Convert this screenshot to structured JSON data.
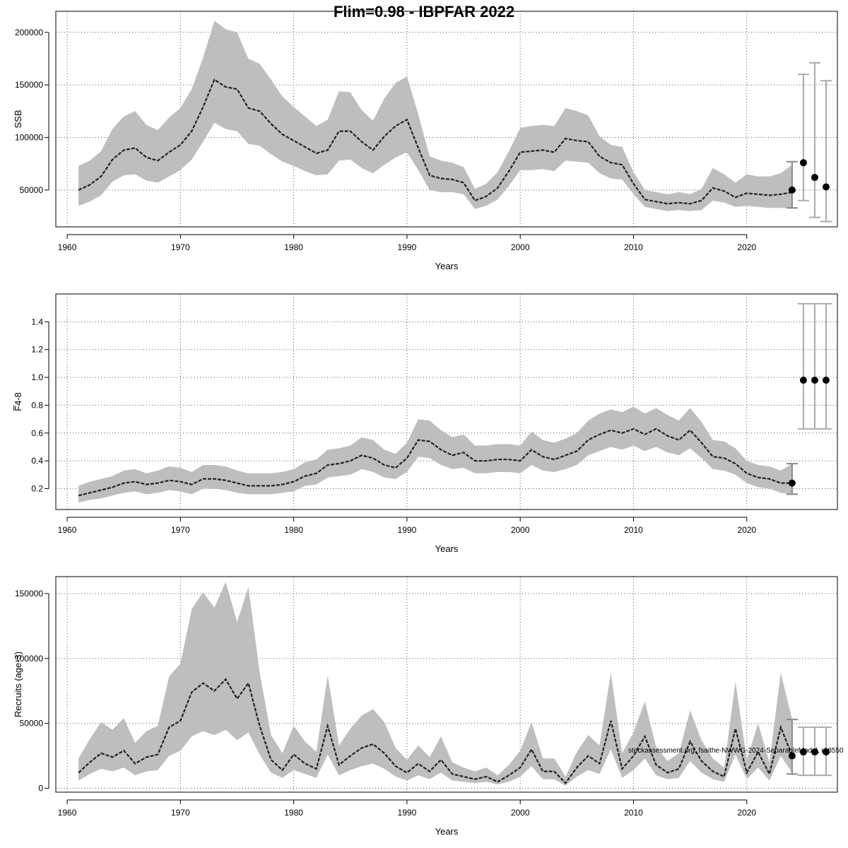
{
  "title": "Flim=0.98 - IBPFAR 2022",
  "watermark": "stockassessment.org, fsaithe-NWWG-2024-SeparableModel, r18550",
  "chart_data": [
    {
      "type": "line",
      "id": "ssb",
      "xlabel": "Years",
      "ylabel": "SSB",
      "xlim": [
        1959,
        2028
      ],
      "ylim": [
        15000,
        220000
      ],
      "xticks": [
        1960,
        1970,
        1980,
        1990,
        2000,
        2010,
        2020
      ],
      "yticks": [
        50000,
        100000,
        150000,
        200000
      ],
      "grid": true,
      "x": [
        1961,
        1962,
        1963,
        1964,
        1965,
        1966,
        1967,
        1968,
        1969,
        1970,
        1971,
        1972,
        1973,
        1974,
        1975,
        1976,
        1977,
        1978,
        1979,
        1980,
        1981,
        1982,
        1983,
        1984,
        1985,
        1986,
        1987,
        1988,
        1989,
        1990,
        1991,
        1992,
        1993,
        1994,
        1995,
        1996,
        1997,
        1998,
        1999,
        2000,
        2001,
        2002,
        2003,
        2004,
        2005,
        2006,
        2007,
        2008,
        2009,
        2010,
        2011,
        2012,
        2013,
        2014,
        2015,
        2016,
        2017,
        2018,
        2019,
        2020,
        2021,
        2022,
        2023,
        2024
      ],
      "estimate": [
        50000,
        55000,
        63000,
        79000,
        88000,
        90000,
        81000,
        78000,
        86000,
        93000,
        106000,
        129000,
        155000,
        148000,
        146000,
        128000,
        125000,
        113000,
        103000,
        97000,
        91000,
        85000,
        88000,
        106000,
        106000,
        96000,
        88000,
        101000,
        111000,
        117000,
        90000,
        64000,
        61000,
        60000,
        57000,
        40000,
        44000,
        52000,
        68000,
        86000,
        87000,
        88000,
        86000,
        99000,
        97000,
        96000,
        82000,
        76000,
        74000,
        56000,
        41000,
        39000,
        37000,
        38000,
        37000,
        40000,
        52000,
        49000,
        43000,
        47000,
        46000,
        45000,
        46000,
        48000
      ],
      "upper": [
        73000,
        78000,
        87000,
        108000,
        120000,
        125000,
        112000,
        107000,
        119000,
        128000,
        146000,
        176000,
        211000,
        203000,
        200000,
        175000,
        170000,
        155000,
        139000,
        129000,
        120000,
        111000,
        117000,
        144000,
        143000,
        126000,
        116000,
        137000,
        152000,
        158000,
        122000,
        82000,
        78000,
        76000,
        72000,
        51000,
        56000,
        67000,
        87000,
        109000,
        111000,
        112000,
        111000,
        128000,
        125000,
        121000,
        101000,
        93000,
        91000,
        67000,
        50000,
        48000,
        46000,
        48000,
        46000,
        51000,
        71000,
        65000,
        57000,
        65000,
        63000,
        63000,
        66000,
        74000
      ],
      "lower": [
        35000,
        39000,
        45000,
        58000,
        64000,
        65000,
        59000,
        57000,
        63000,
        69000,
        79000,
        96000,
        114000,
        108000,
        106000,
        94000,
        92000,
        84000,
        77000,
        73000,
        68000,
        64000,
        65000,
        78000,
        79000,
        71000,
        66000,
        74000,
        81000,
        86000,
        69000,
        50000,
        48000,
        48000,
        46000,
        32000,
        35000,
        41000,
        54000,
        69000,
        69000,
        70000,
        68000,
        78000,
        77000,
        76000,
        66000,
        61000,
        60000,
        46000,
        34000,
        32000,
        30000,
        31000,
        30000,
        31000,
        40000,
        38000,
        34000,
        35000,
        34000,
        33000,
        33000,
        33000
      ],
      "projection": {
        "x": [
          2024,
          2025,
          2026,
          2027
        ],
        "median": [
          50000,
          76000,
          62000,
          53000
        ],
        "low": [
          33000,
          40000,
          24000,
          20000
        ],
        "high": [
          77000,
          160000,
          171000,
          154000
        ]
      }
    },
    {
      "type": "line",
      "id": "fbar",
      "xlabel": "Years",
      "ylabel": "F̅4-8",
      "xlim": [
        1959,
        2028
      ],
      "ylim": [
        0.05,
        1.6
      ],
      "xticks": [
        1960,
        1970,
        1980,
        1990,
        2000,
        2010,
        2020
      ],
      "yticks": [
        0.2,
        0.4,
        0.6,
        0.8,
        1.0,
        1.2,
        1.4
      ],
      "ytick_labels": [
        "0.2",
        "0.4",
        "0.6",
        "0.8",
        "1.0",
        "1.2",
        "1.4"
      ],
      "grid": true,
      "x": [
        1961,
        1962,
        1963,
        1964,
        1965,
        1966,
        1967,
        1968,
        1969,
        1970,
        1971,
        1972,
        1973,
        1974,
        1975,
        1976,
        1977,
        1978,
        1979,
        1980,
        1981,
        1982,
        1983,
        1984,
        1985,
        1986,
        1987,
        1988,
        1989,
        1990,
        1991,
        1992,
        1993,
        1994,
        1995,
        1996,
        1997,
        1998,
        1999,
        2000,
        2001,
        2002,
        2003,
        2004,
        2005,
        2006,
        2007,
        2008,
        2009,
        2010,
        2011,
        2012,
        2013,
        2014,
        2015,
        2016,
        2017,
        2018,
        2019,
        2020,
        2021,
        2022,
        2023,
        2024
      ],
      "estimate": [
        0.15,
        0.17,
        0.19,
        0.21,
        0.24,
        0.25,
        0.23,
        0.24,
        0.26,
        0.25,
        0.23,
        0.27,
        0.27,
        0.26,
        0.24,
        0.22,
        0.22,
        0.22,
        0.23,
        0.25,
        0.29,
        0.31,
        0.37,
        0.38,
        0.4,
        0.44,
        0.42,
        0.37,
        0.35,
        0.42,
        0.55,
        0.54,
        0.48,
        0.44,
        0.46,
        0.4,
        0.4,
        0.41,
        0.41,
        0.4,
        0.48,
        0.43,
        0.41,
        0.44,
        0.47,
        0.55,
        0.59,
        0.62,
        0.6,
        0.63,
        0.59,
        0.63,
        0.58,
        0.55,
        0.62,
        0.53,
        0.43,
        0.42,
        0.38,
        0.31,
        0.28,
        0.27,
        0.24,
        0.24
      ],
      "upper": [
        0.22,
        0.25,
        0.27,
        0.29,
        0.33,
        0.34,
        0.31,
        0.33,
        0.36,
        0.35,
        0.32,
        0.37,
        0.37,
        0.36,
        0.33,
        0.31,
        0.31,
        0.31,
        0.32,
        0.34,
        0.39,
        0.41,
        0.48,
        0.49,
        0.51,
        0.57,
        0.55,
        0.48,
        0.45,
        0.53,
        0.7,
        0.69,
        0.62,
        0.57,
        0.59,
        0.51,
        0.51,
        0.52,
        0.52,
        0.51,
        0.61,
        0.55,
        0.53,
        0.56,
        0.6,
        0.69,
        0.74,
        0.77,
        0.75,
        0.79,
        0.74,
        0.78,
        0.73,
        0.69,
        0.78,
        0.68,
        0.55,
        0.54,
        0.49,
        0.4,
        0.37,
        0.36,
        0.33,
        0.38
      ],
      "lower": [
        0.1,
        0.12,
        0.13,
        0.15,
        0.17,
        0.18,
        0.16,
        0.17,
        0.19,
        0.18,
        0.16,
        0.2,
        0.2,
        0.19,
        0.17,
        0.16,
        0.16,
        0.16,
        0.17,
        0.18,
        0.22,
        0.23,
        0.28,
        0.29,
        0.3,
        0.34,
        0.32,
        0.28,
        0.27,
        0.32,
        0.43,
        0.42,
        0.37,
        0.34,
        0.35,
        0.31,
        0.31,
        0.32,
        0.32,
        0.31,
        0.37,
        0.33,
        0.32,
        0.34,
        0.37,
        0.44,
        0.47,
        0.5,
        0.48,
        0.51,
        0.47,
        0.5,
        0.46,
        0.44,
        0.49,
        0.42,
        0.34,
        0.33,
        0.3,
        0.24,
        0.21,
        0.2,
        0.17,
        0.16
      ],
      "projection": {
        "x": [
          2024,
          2025,
          2026,
          2027
        ],
        "median": [
          0.24,
          0.98,
          0.98,
          0.98
        ],
        "low": [
          0.16,
          0.63,
          0.63,
          0.63
        ],
        "high": [
          0.38,
          1.53,
          1.53,
          1.53
        ]
      }
    },
    {
      "type": "line",
      "id": "recruits",
      "xlabel": "Years",
      "ylabel": "Recruits (age-3)",
      "xlim": [
        1959,
        2028
      ],
      "ylim": [
        -3000,
        163000
      ],
      "xticks": [
        1960,
        1970,
        1980,
        1990,
        2000,
        2010,
        2020
      ],
      "yticks": [
        0,
        50000,
        100000,
        150000
      ],
      "grid": true,
      "x": [
        1961,
        1962,
        1963,
        1964,
        1965,
        1966,
        1967,
        1968,
        1969,
        1970,
        1971,
        1972,
        1973,
        1974,
        1975,
        1976,
        1977,
        1978,
        1979,
        1980,
        1981,
        1982,
        1983,
        1984,
        1985,
        1986,
        1987,
        1988,
        1989,
        1990,
        1991,
        1992,
        1993,
        1994,
        1995,
        1996,
        1997,
        1998,
        1999,
        2000,
        2001,
        2002,
        2003,
        2004,
        2005,
        2006,
        2007,
        2008,
        2009,
        2010,
        2011,
        2012,
        2013,
        2014,
        2015,
        2016,
        2017,
        2018,
        2019,
        2020,
        2021,
        2022,
        2023,
        2024
      ],
      "estimate": [
        12000,
        20000,
        27000,
        24000,
        29000,
        19000,
        24000,
        26000,
        47000,
        52000,
        74000,
        81000,
        75000,
        84000,
        69000,
        81000,
        48000,
        22000,
        14000,
        26000,
        19000,
        15000,
        48000,
        18000,
        25000,
        31000,
        34000,
        27000,
        17000,
        12000,
        19000,
        13000,
        22000,
        11000,
        9000,
        7000,
        9000,
        5000,
        10000,
        16000,
        30000,
        13000,
        13000,
        4000,
        16000,
        25000,
        19000,
        52000,
        15000,
        25000,
        40000,
        18000,
        12000,
        15000,
        36000,
        21000,
        13000,
        9000,
        46000,
        12000,
        28000,
        11000,
        47000,
        25000
      ],
      "upper": [
        23000,
        38000,
        51000,
        45000,
        54000,
        35000,
        44000,
        48000,
        86000,
        96000,
        138000,
        151000,
        139000,
        159000,
        128000,
        155000,
        89000,
        41000,
        27000,
        48000,
        36000,
        28000,
        87000,
        33000,
        46000,
        56000,
        61000,
        51000,
        31000,
        22000,
        33000,
        24000,
        40000,
        20000,
        16000,
        13000,
        16000,
        10000,
        18000,
        29000,
        51000,
        23000,
        23000,
        9000,
        28000,
        41000,
        33000,
        89000,
        27000,
        43000,
        67000,
        32000,
        21000,
        27000,
        60000,
        37000,
        23000,
        16000,
        82000,
        22000,
        50000,
        20000,
        89000,
        53000
      ],
      "lower": [
        6000,
        11000,
        15000,
        13000,
        16000,
        10000,
        13000,
        14000,
        25000,
        29000,
        40000,
        44000,
        41000,
        45000,
        37000,
        43000,
        26000,
        12000,
        8000,
        14000,
        11000,
        8000,
        26000,
        10000,
        14000,
        17000,
        19000,
        15000,
        9000,
        6000,
        10000,
        7000,
        12000,
        6000,
        5000,
        4000,
        5000,
        3000,
        5000,
        9000,
        17000,
        7000,
        7000,
        2000,
        9000,
        14000,
        11000,
        30000,
        8000,
        14000,
        23000,
        10000,
        7000,
        8000,
        21000,
        12000,
        7000,
        5000,
        26000,
        7000,
        16000,
        6000,
        25000,
        12000
      ],
      "projection": {
        "x": [
          2024,
          2025,
          2026,
          2027
        ],
        "median": [
          25000,
          28000,
          28000,
          28000
        ],
        "low": [
          11000,
          10000,
          10000,
          10000
        ],
        "high": [
          53000,
          47000,
          47000,
          47000
        ]
      }
    }
  ]
}
